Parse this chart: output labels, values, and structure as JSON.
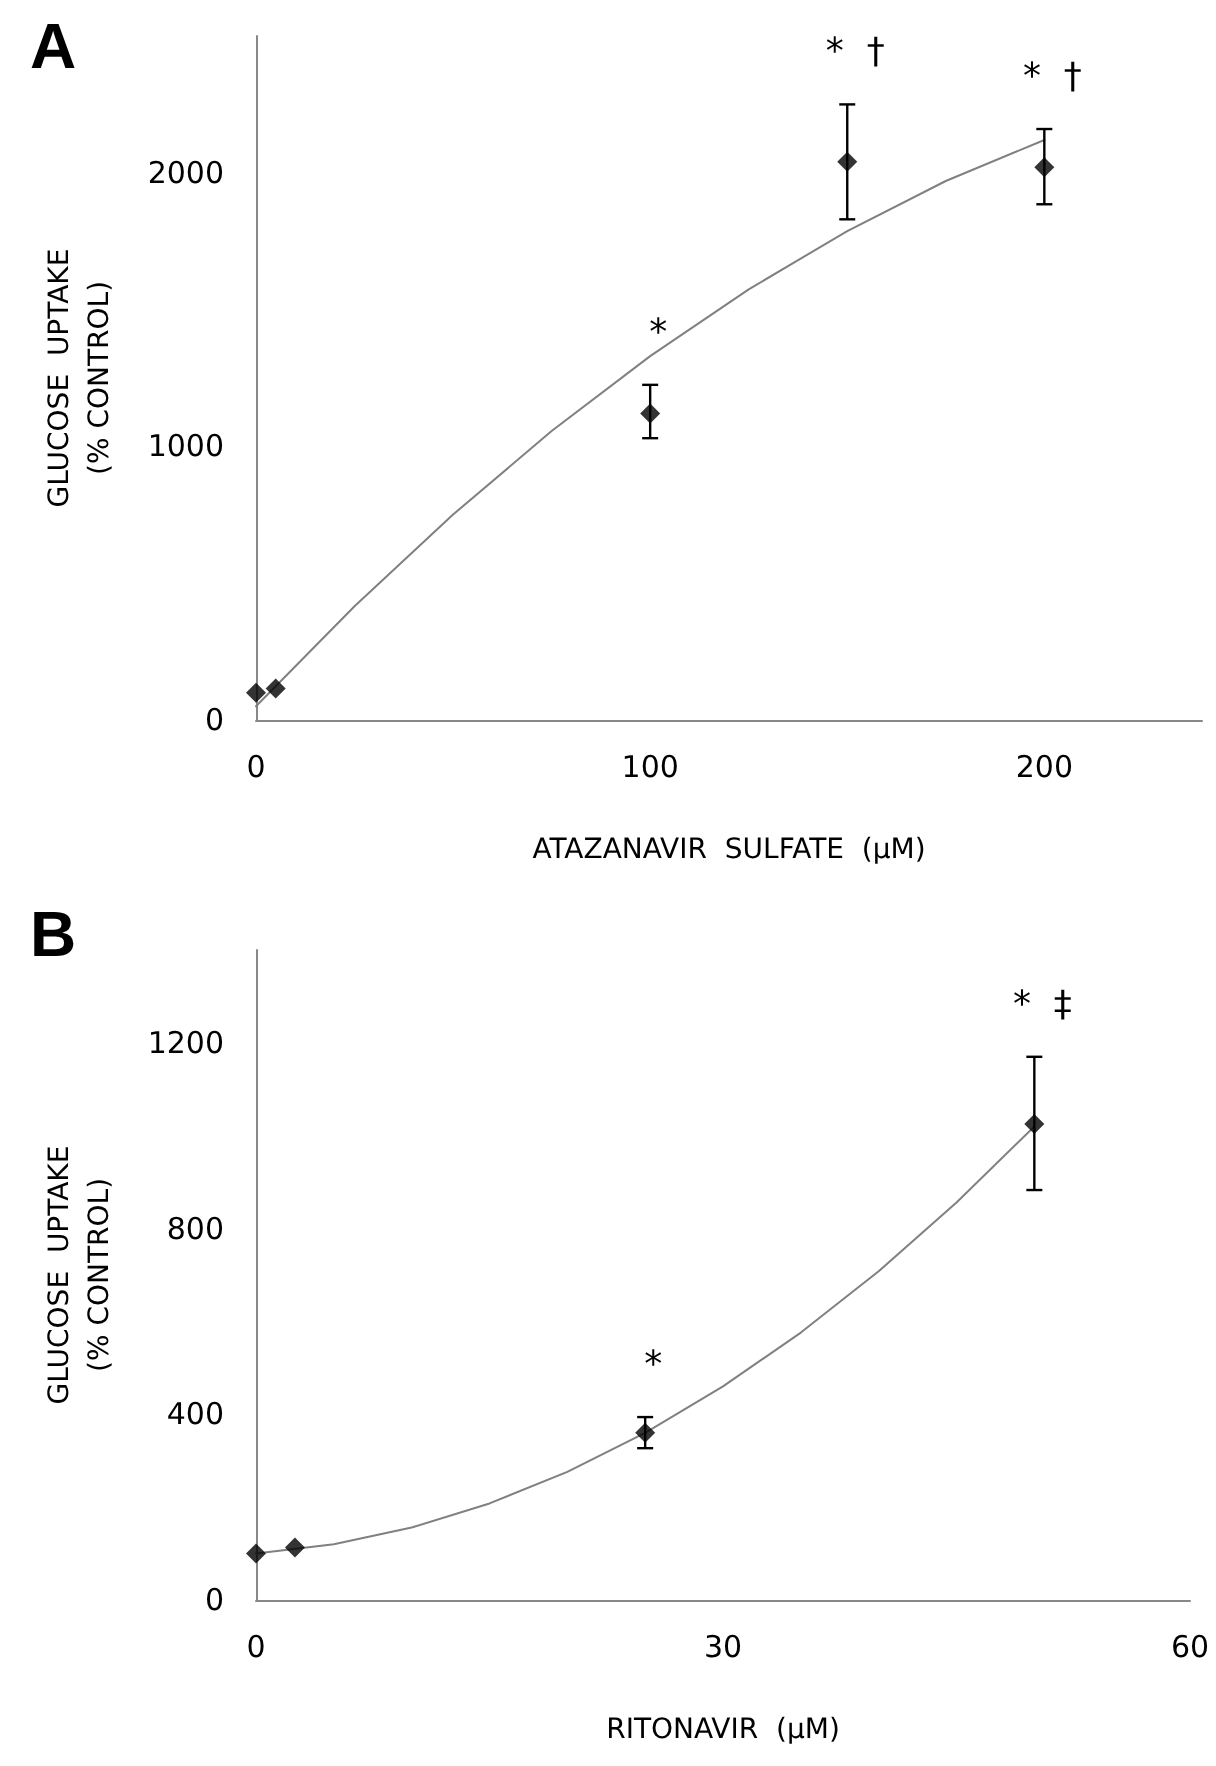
{
  "chart_data": [
    {
      "type": "scatter",
      "title": "A",
      "xlabel": "ATAZANAVIR  SULFATE  (μM)",
      "ylabel": "GLUCOSE  UPTAKE\n(% CONTROL)",
      "xlim": [
        0,
        240
      ],
      "xticks": [
        0,
        100,
        200
      ],
      "ylim": [
        0,
        2500
      ],
      "yticks": [
        0,
        1000,
        2000
      ],
      "grid": false,
      "series": [
        {
          "type": "scatter",
          "marker": "diamond",
          "color": "#000000",
          "x": [
            0,
            5,
            100,
            150,
            200
          ],
          "values": [
            100,
            115,
            1120,
            2040,
            2020
          ],
          "errors": [
            null,
            null,
            [
              1030,
              1225
            ],
            [
              1830,
              2250
            ],
            [
              1885,
              2160
            ]
          ]
        },
        {
          "type": "line",
          "marker": "none",
          "line_style": "solid",
          "color": "#808080",
          "x": [
            0,
            25,
            50,
            75,
            100,
            125,
            150,
            175,
            200
          ],
          "values": [
            50,
            416,
            751,
            1056,
            1330,
            1574,
            1787,
            1970,
            2120
          ]
        }
      ],
      "annotations": [
        {
          "text": "*",
          "x": 100,
          "y": 1120
        },
        {
          "text": "*  †",
          "x": 150,
          "y": 2040
        },
        {
          "text": "*  †",
          "x": 200,
          "y": 2020
        }
      ]
    },
    {
      "type": "scatter",
      "title": "B",
      "xlabel": "RITONAVIR  (μM)",
      "ylabel": "GLUCOSE  UPTAKE\n(% CONTROL)",
      "xlim": [
        0,
        60
      ],
      "xticks": [
        0,
        30,
        60
      ],
      "ylim": [
        0,
        1400
      ],
      "yticks": [
        0,
        400,
        800,
        1200
      ],
      "grid": false,
      "series": [
        {
          "type": "scatter",
          "marker": "diamond",
          "color": "#000000",
          "x": [
            0,
            2.5,
            25,
            50
          ],
          "values": [
            100,
            113,
            360,
            1025
          ],
          "errors": [
            null,
            null,
            [
              327,
              394
            ],
            [
              883,
              1170
            ]
          ]
        },
        {
          "type": "line",
          "marker": "none",
          "line_style": "solid",
          "color": "#808080",
          "x": [
            0,
            5,
            10,
            15,
            20,
            25,
            30,
            35,
            40,
            45,
            50
          ],
          "values": [
            100,
            120,
            156,
            208,
            276,
            360,
            460,
            576,
            708,
            856,
            1020
          ]
        }
      ],
      "annotations": [
        {
          "text": "*",
          "x": 25,
          "y": 360
        },
        {
          "text": "*  ‡",
          "x": 50,
          "y": 1025
        }
      ]
    }
  ]
}
